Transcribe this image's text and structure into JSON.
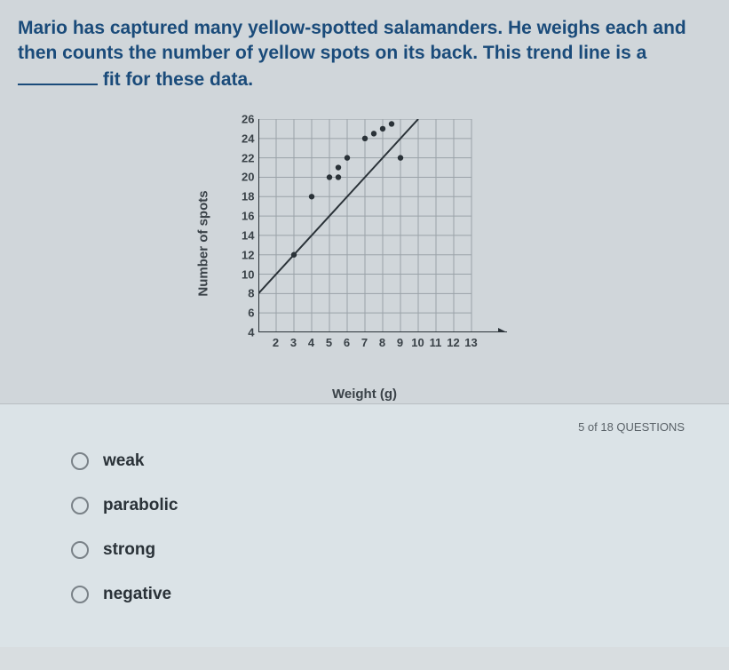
{
  "question": {
    "text_before": "Mario has captured many yellow-spotted salamanders. He weighs each and then counts the number of yellow spots on its back. This trend line is a ",
    "text_after": " fit for these data."
  },
  "chart": {
    "type": "scatter",
    "y_label": "Number of spots",
    "x_label": "Weight (g)",
    "xlim": [
      1,
      13
    ],
    "ylim": [
      4,
      26
    ],
    "xticks": [
      2,
      3,
      4,
      5,
      6,
      7,
      8,
      9,
      10,
      11,
      12,
      13
    ],
    "yticks": [
      4,
      6,
      8,
      10,
      12,
      14,
      16,
      18,
      20,
      22,
      24,
      26
    ],
    "grid_color": "#9aa2a8",
    "axis_color": "#2a3238",
    "background_color": "#d0d6da",
    "point_color": "#2a3238",
    "point_radius": 3.2,
    "line_color": "#2a3238",
    "line_width": 2,
    "trend_line": {
      "x1": 1,
      "y1": 8,
      "x2": 11,
      "y2": 28
    },
    "points": [
      {
        "x": 3,
        "y": 12
      },
      {
        "x": 4,
        "y": 18
      },
      {
        "x": 5,
        "y": 20
      },
      {
        "x": 5.5,
        "y": 21
      },
      {
        "x": 5.5,
        "y": 20
      },
      {
        "x": 6,
        "y": 22
      },
      {
        "x": 7,
        "y": 24
      },
      {
        "x": 7.5,
        "y": 24.5
      },
      {
        "x": 8,
        "y": 25
      },
      {
        "x": 8.5,
        "y": 25.5
      },
      {
        "x": 9,
        "y": 22
      }
    ]
  },
  "progress": "5 of 18 QUESTIONS",
  "options": [
    {
      "id": "weak",
      "label": "weak"
    },
    {
      "id": "parabolic",
      "label": "parabolic"
    },
    {
      "id": "strong",
      "label": "strong"
    },
    {
      "id": "negative",
      "label": "negative"
    }
  ]
}
